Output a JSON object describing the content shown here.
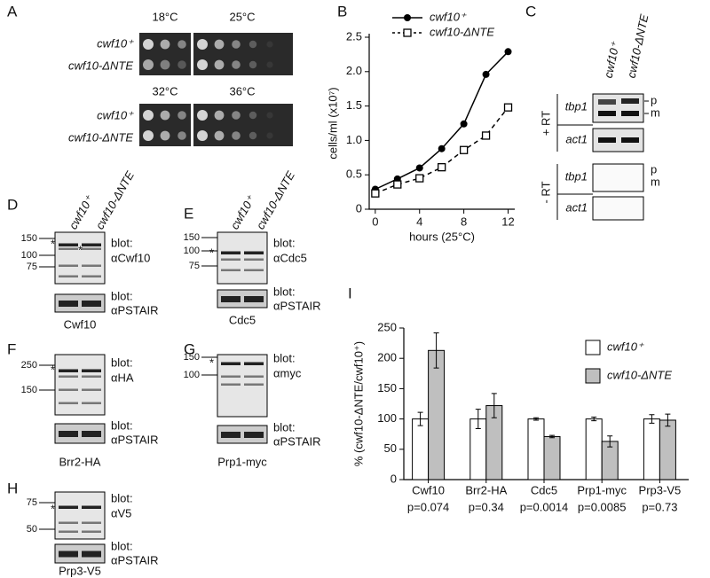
{
  "panel_labels": [
    "A",
    "B",
    "C",
    "D",
    "E",
    "F",
    "G",
    "H",
    "I"
  ],
  "panel_a": {
    "temperatures": [
      "18°C",
      "25°C",
      "32°C",
      "36°C"
    ],
    "strains": [
      "cwf10⁺",
      "cwf10-ΔNTE"
    ]
  },
  "panel_c": {
    "lanes": [
      "cwf10⁺",
      "cwf10-ΔNTE"
    ],
    "conditions": [
      "+ RT",
      "- RT"
    ],
    "genes": [
      "tbp1",
      "act1"
    ],
    "bands": [
      "p",
      "m"
    ]
  },
  "blots": [
    {
      "lanes": [
        "cwf10⁺",
        "cwf10-ΔNTE"
      ],
      "markers": [
        150,
        100,
        75
      ],
      "stars": [
        "*",
        "*"
      ],
      "blot_word": "blot:",
      "probe": "αCwf10",
      "control_word": "blot:",
      "control": "αPSTAIR",
      "caption": "Cwf10"
    },
    {
      "lanes": [
        "cwf10⁺",
        "cwf10-ΔNTE"
      ],
      "markers": [
        150,
        100,
        75
      ],
      "stars": [
        "*"
      ],
      "blot_word": "blot:",
      "probe": "αCdc5",
      "control_word": "blot:",
      "control": "αPSTAIR",
      "caption": "Cdc5"
    },
    {
      "markers": [
        250,
        150
      ],
      "stars": [
        "*"
      ],
      "blot_word": "blot:",
      "probe": "αHA",
      "control_word": "blot:",
      "control": "αPSTAIR",
      "caption": "Brr2-HA"
    },
    {
      "markers": [
        150,
        100
      ],
      "stars": [
        "*"
      ],
      "blot_word": "blot:",
      "probe": "αmyc",
      "control_word": "blot:",
      "control": "αPSTAIR",
      "caption": "Prp1-myc"
    },
    {
      "markers": [
        75,
        50
      ],
      "stars": [
        "*"
      ],
      "blot_word": "blot:",
      "probe": "αV5",
      "control_word": "blot:",
      "control": "αPSTAIR",
      "caption": "Prp3-V5"
    }
  ],
  "chart_data": [
    {
      "type": "line",
      "xlabel": "hours (25°C)",
      "ylabel": "cells/ml (x10⁷)",
      "x": [
        0,
        2,
        4,
        6,
        8,
        10,
        12
      ],
      "series": [
        {
          "name": "cwf10⁺",
          "color": "#000000",
          "marker": "circle",
          "linestyle": "solid",
          "values": [
            0.29,
            0.44,
            0.6,
            0.88,
            1.24,
            1.96,
            2.29
          ]
        },
        {
          "name": "cwf10-ΔNTE",
          "color": "#000000",
          "marker": "square",
          "linestyle": "dashed",
          "values": [
            0.23,
            0.36,
            0.45,
            0.61,
            0.86,
            1.07,
            1.48
          ]
        }
      ],
      "xlim": [
        -0.55,
        12.6
      ],
      "xticks": [
        0,
        4,
        8,
        12
      ],
      "ylim": [
        0,
        2.5
      ],
      "yticks": [
        0,
        0.5,
        {
          "value": 1,
          "label": "1.0"
        },
        1.5,
        {
          "value": 2,
          "label": "2.0"
        },
        2.5
      ]
    },
    {
      "type": "bar",
      "ylabel": "% (cwf10-ΔNTE/cwf10⁺)",
      "categories": [
        "Cwf10",
        "Brr2-HA",
        "Cdc5",
        "Prp1-myc",
        "Prp3-V5"
      ],
      "annotations": [
        "p=0.074",
        "p=0.34",
        "p=0.0014",
        "p=0.0085",
        "p=0.73"
      ],
      "series": [
        {
          "name": "cwf10⁺",
          "color": "#ffffff",
          "values": [
            100,
            100,
            100,
            100,
            100
          ],
          "errors": [
            11,
            16,
            2,
            3,
            7
          ]
        },
        {
          "name": "cwf10-ΔNTE",
          "color": "#bfbfbf",
          "values": [
            213,
            122,
            71,
            63,
            98
          ],
          "errors": [
            29,
            20,
            2,
            9,
            10
          ]
        }
      ],
      "ylim": [
        0,
        250
      ],
      "yticks": [
        0,
        50,
        100,
        150,
        200,
        250
      ]
    }
  ]
}
